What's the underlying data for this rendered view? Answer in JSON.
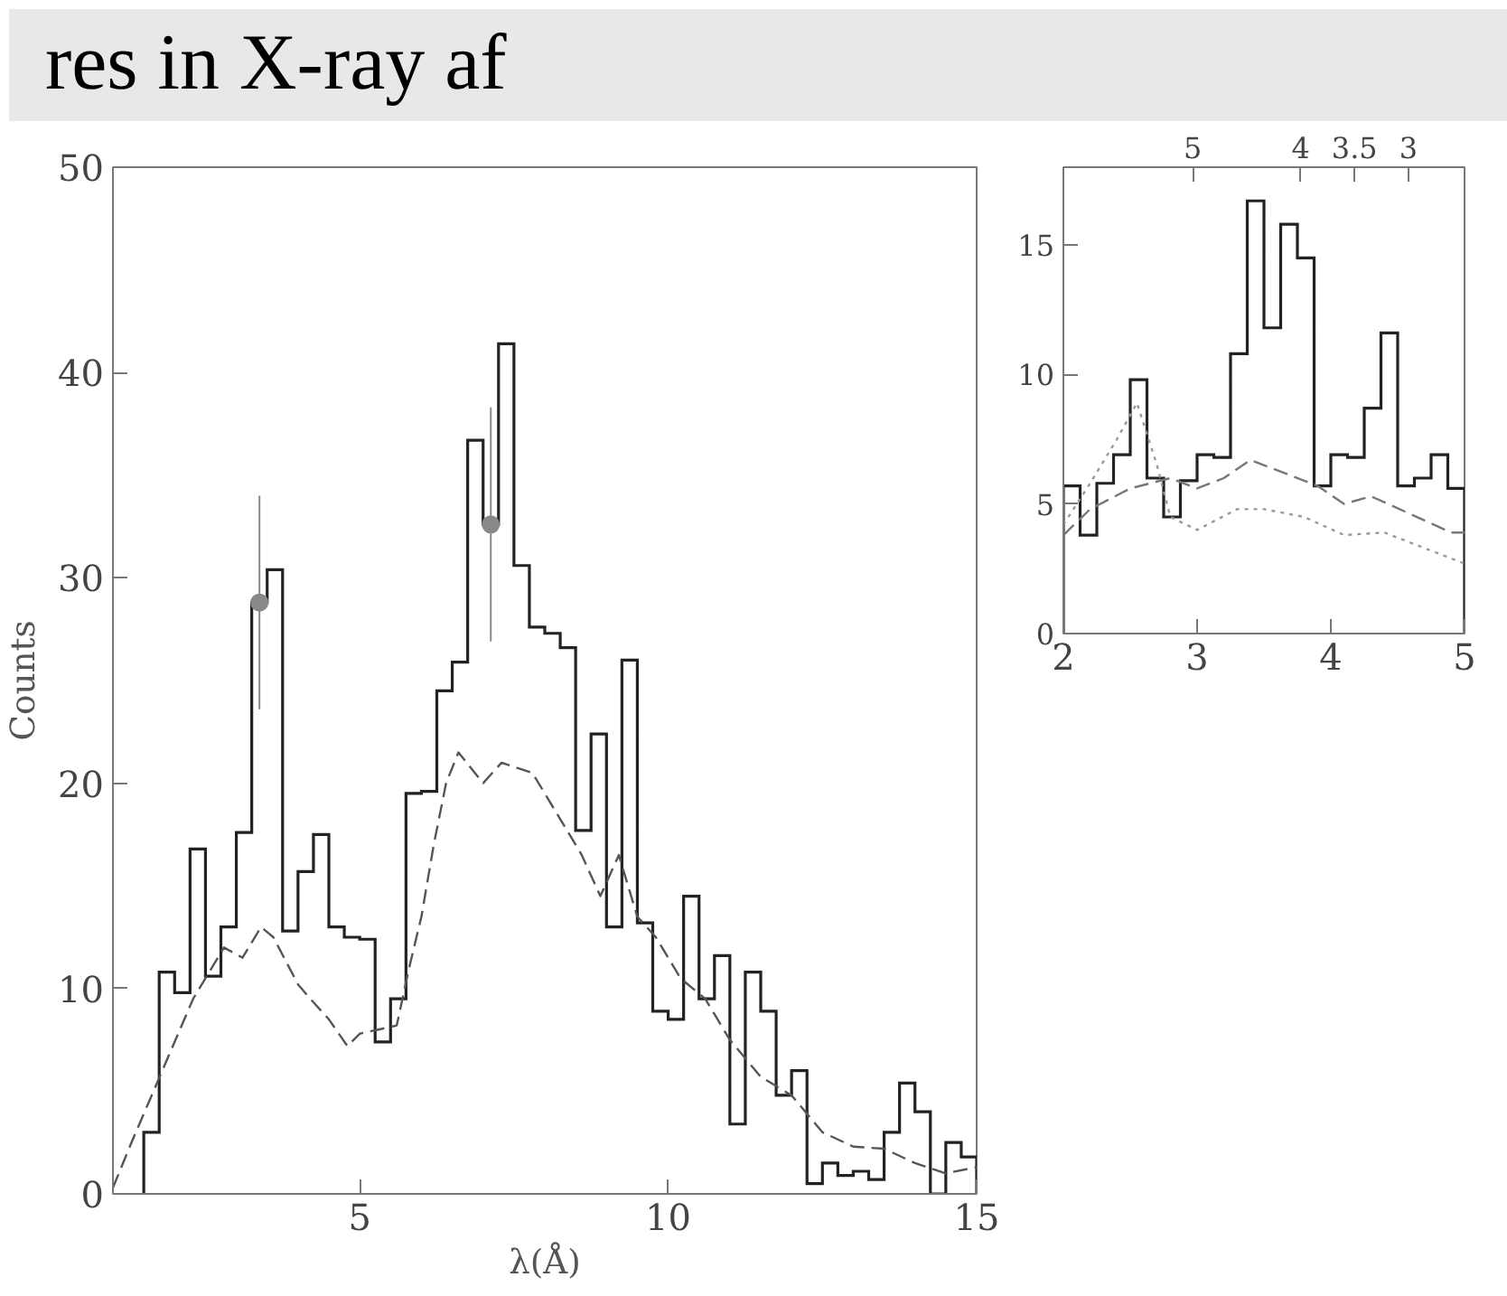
{
  "chart_data": [
    {
      "type": "histogram",
      "xlabel": "λ(Å)",
      "ylabel": "Counts",
      "annotations": [
        "res in X-ray af"
      ],
      "color": "#222222",
      "bins": [
        1.5,
        1.75,
        2.0,
        2.25,
        2.5,
        2.75,
        3.0,
        3.25,
        3.5,
        3.75,
        4.0,
        4.25,
        4.5,
        4.75,
        5.0,
        5.25,
        5.5,
        5.75,
        6.0,
        6.25,
        6.5,
        6.75,
        7.0,
        7.25,
        7.5,
        7.75,
        8.0,
        8.25,
        8.5,
        8.75,
        9.0,
        9.25,
        9.5,
        9.75,
        10.0,
        10.25,
        10.5,
        10.75,
        11.0,
        11.25,
        11.5,
        11.75,
        12.0,
        12.25,
        12.5,
        12.75,
        13.0,
        13.25,
        13.5,
        13.75,
        14.0,
        14.25,
        14.5,
        14.75,
        15.0
      ],
      "values": [
        3.0,
        10.8,
        9.8,
        16.8,
        10.6,
        13.0,
        17.6,
        28.8,
        30.4,
        12.8,
        15.7,
        17.5,
        13.0,
        12.5,
        12.4,
        7.4,
        9.5,
        19.5,
        19.6,
        24.5,
        25.9,
        36.7,
        32.6,
        41.4,
        30.6,
        27.6,
        27.3,
        26.6,
        17.7,
        22.4,
        13.0,
        26.0,
        13.2,
        8.9,
        8.5,
        14.5,
        9.5,
        11.6,
        3.4,
        10.8,
        8.9,
        4.8,
        6.0,
        0.5,
        1.5,
        0.9,
        1.1,
        0.7,
        3.0,
        5.4,
        4.0,
        0,
        2.5,
        1.8
      ],
      "series": [
        {
          "type": "line",
          "color": "#555555",
          "line_style": "dashed",
          "x": [
            1.0,
            1.3,
            1.8,
            2.3,
            2.8,
            3.1,
            3.4,
            3.6,
            4.0,
            4.2,
            4.5,
            4.8,
            5.0,
            5.3,
            5.6,
            5.8,
            6.0,
            6.2,
            6.4,
            6.6,
            7.0,
            7.3,
            7.8,
            8.2,
            8.6,
            8.9,
            9.2,
            9.5,
            9.8,
            10.2,
            10.6,
            11.0,
            11.5,
            12.0,
            12.5,
            13.0,
            13.5,
            14.0,
            14.5,
            15.0
          ],
          "values": [
            0.3,
            2.5,
            6.0,
            9.5,
            12.0,
            11.5,
            13.0,
            12.5,
            10.2,
            9.5,
            8.5,
            7.2,
            7.8,
            8.0,
            8.2,
            11.0,
            13.5,
            17.0,
            20.0,
            21.5,
            20.0,
            21.0,
            20.5,
            18.5,
            16.5,
            14.5,
            16.5,
            13.5,
            12.5,
            10.5,
            9.5,
            7.5,
            5.7,
            4.8,
            3.0,
            2.3,
            2.2,
            1.5,
            1.0,
            1.3
          ]
        },
        {
          "type": "scatter",
          "color": "#888888",
          "marker": "circle",
          "x": [
            3.375,
            7.125
          ],
          "values": [
            28.8,
            32.6
          ],
          "errors": [
            5.2,
            5.7
          ]
        }
      ],
      "xlim": [
        1,
        15
      ],
      "xticks": [
        5,
        10,
        15
      ],
      "ylim": [
        0,
        50
      ],
      "yticks": [
        0,
        10,
        20,
        30,
        40,
        50
      ]
    },
    {
      "type": "histogram",
      "color": "#222222",
      "bins": [
        2.0,
        2.125,
        2.25,
        2.375,
        2.5,
        2.625,
        2.75,
        2.875,
        3.0,
        3.125,
        3.25,
        3.375,
        3.5,
        3.625,
        3.75,
        3.875,
        4.0,
        4.125,
        4.25,
        4.375,
        4.5,
        4.625,
        4.75,
        4.875,
        5.0
      ],
      "values": [
        5.7,
        3.8,
        5.8,
        6.9,
        9.8,
        6.0,
        4.5,
        5.9,
        6.9,
        6.8,
        10.8,
        16.7,
        11.8,
        15.8,
        14.5,
        5.7,
        6.9,
        6.8,
        8.7,
        11.6,
        5.7,
        6.0,
        6.9,
        5.6
      ],
      "series": [
        {
          "type": "line",
          "color": "#777777",
          "line_style": "dashed",
          "x": [
            2.0,
            2.2,
            2.5,
            2.8,
            3.0,
            3.2,
            3.4,
            3.6,
            3.9,
            4.1,
            4.3,
            4.6,
            4.9,
            5.0
          ],
          "values": [
            3.8,
            4.8,
            5.6,
            6.0,
            5.6,
            6.0,
            6.7,
            6.3,
            5.7,
            5.0,
            5.3,
            4.6,
            3.9,
            3.9
          ]
        },
        {
          "type": "line",
          "color": "#999999",
          "line_style": "dotted",
          "x": [
            2.0,
            2.2,
            2.4,
            2.55,
            2.7,
            2.8,
            3.0,
            3.3,
            3.5,
            3.8,
            4.1,
            4.4,
            4.7,
            5.0
          ],
          "values": [
            4.2,
            5.8,
            7.5,
            8.9,
            6.5,
            4.5,
            4.0,
            4.8,
            4.8,
            4.5,
            3.8,
            3.9,
            3.3,
            2.7
          ]
        }
      ],
      "xlim": [
        2,
        5
      ],
      "xticks": [
        2,
        3,
        4,
        5
      ],
      "x2lim": [
        6.2,
        2.48
      ],
      "x2ticks": [
        5,
        4,
        3.5,
        3
      ],
      "ylim": [
        0,
        18
      ],
      "yticks": [
        0,
        5,
        10,
        15
      ]
    }
  ]
}
